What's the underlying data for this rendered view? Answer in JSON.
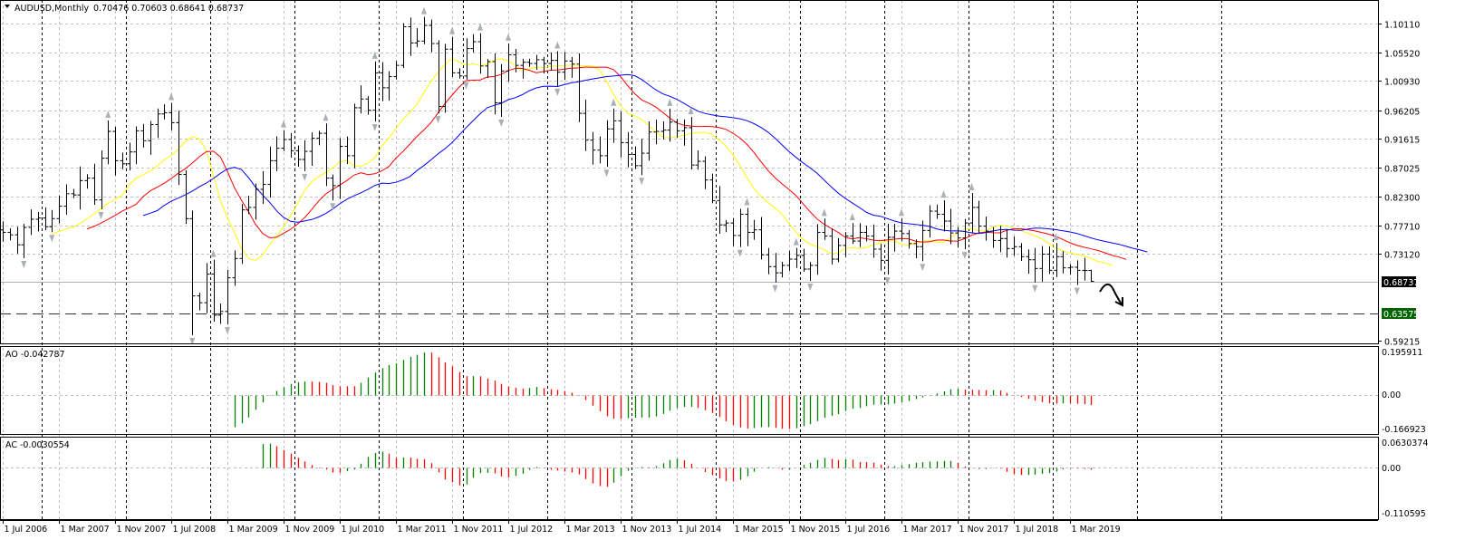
{
  "header": {
    "symbol_label": "AUDUSD,Monthly",
    "ohlc_label": "0.70476 0.70603 0.68641 0.68737"
  },
  "price_axis": {
    "labels": [
      "1.10110",
      "1.05520",
      "1.00930",
      "0.96205",
      "0.91615",
      "0.87025",
      "0.82300",
      "0.77710",
      "0.73120",
      "0.59215"
    ],
    "current_price": "0.68737",
    "level_price": "0.63575",
    "current_bg": "#000000",
    "level_bg": "#006400"
  },
  "ao_panel": {
    "label": "AO -0.042787",
    "top": "0.195911",
    "zero": "0.00",
    "bottom": "-0.166923"
  },
  "ac_panel": {
    "label": "AC -0.0030554",
    "top": "0.0630374",
    "zero": "0.00",
    "bottom": "-0.110595"
  },
  "time_axis": {
    "labels": [
      "1 Jul 2006",
      "1 Mar 2007",
      "1 Nov 2007",
      "1 Jul 2008",
      "1 Mar 2009",
      "1 Nov 2009",
      "1 Jul 2010",
      "1 Mar 2011",
      "1 Nov 2011",
      "1 Jul 2012",
      "1 Mar 2013",
      "1 Nov 2013",
      "1 Jul 2014",
      "1 Mar 2015",
      "1 Nov 2015",
      "1 Jul 2016",
      "1 Mar 2017",
      "1 Nov 2017",
      "1 Jul 2018",
      "1 Mar 2019"
    ]
  },
  "colors": {
    "up": "#008000",
    "down": "#ff0000",
    "ma_fast": "#ffff00",
    "ma_mid": "#ff0000",
    "ma_slow": "#0000ff"
  },
  "chart_data": {
    "type": "ohlc",
    "title": "AUDUSD,Monthly",
    "start": "Jul 2006",
    "interval": "month",
    "ylim": [
      0.59215,
      1.1011
    ],
    "close": [
      0.766,
      0.762,
      0.746,
      0.774,
      0.787,
      0.789,
      0.775,
      0.788,
      0.808,
      0.828,
      0.826,
      0.849,
      0.853,
      0.818,
      0.885,
      0.928,
      0.881,
      0.876,
      0.895,
      0.929,
      0.913,
      0.939,
      0.956,
      0.958,
      0.942,
      0.859,
      0.788,
      0.664,
      0.653,
      0.699,
      0.633,
      0.639,
      0.693,
      0.724,
      0.802,
      0.806,
      0.835,
      0.843,
      0.881,
      0.901,
      0.915,
      0.897,
      0.883,
      0.896,
      0.917,
      0.925,
      0.853,
      0.841,
      0.904,
      0.889,
      0.966,
      0.98,
      0.962,
      1.022,
      0.998,
      1.016,
      1.034,
      1.096,
      1.07,
      1.073,
      1.098,
      1.069,
      0.968,
      1.06,
      1.022,
      1.017,
      1.061,
      1.072,
      1.033,
      1.04,
      0.974,
      1.025,
      1.051,
      1.034,
      1.039,
      1.037,
      1.043,
      1.037,
      1.042,
      1.023,
      1.041,
      1.036,
      0.957,
      0.914,
      0.898,
      0.889,
      0.932,
      0.945,
      0.91,
      0.891,
      0.873,
      0.893,
      0.927,
      0.928,
      0.93,
      0.943,
      0.929,
      0.934,
      0.874,
      0.88,
      0.85,
      0.817,
      0.778,
      0.781,
      0.761,
      0.795,
      0.766,
      0.77,
      0.73,
      0.711,
      0.701,
      0.713,
      0.723,
      0.729,
      0.707,
      0.713,
      0.766,
      0.76,
      0.723,
      0.745,
      0.76,
      0.752,
      0.766,
      0.76,
      0.739,
      0.721,
      0.758,
      0.768,
      0.764,
      0.748,
      0.743,
      0.769,
      0.8,
      0.795,
      0.784,
      0.765,
      0.757,
      0.781,
      0.806,
      0.776,
      0.768,
      0.753,
      0.756,
      0.74,
      0.743,
      0.727,
      0.722,
      0.708,
      0.731,
      0.705,
      0.727,
      0.709,
      0.71,
      0.705,
      0.70476,
      0.68737
    ],
    "last_bar": {
      "open": 0.70476,
      "high": 0.70603,
      "low": 0.68641,
      "close": 0.68737
    },
    "horizontal_levels": [
      0.68737,
      0.63575
    ],
    "moving_averages": [
      {
        "name": "fast",
        "period": 5,
        "shift": 3,
        "color": "#ffff00"
      },
      {
        "name": "mid",
        "period": 8,
        "shift": 5,
        "color": "#ff0000"
      },
      {
        "name": "slow",
        "period": 13,
        "shift": 8,
        "color": "#0000ff"
      }
    ],
    "indicators": [
      "AO",
      "AC"
    ],
    "ao_ylim": [
      -0.166923,
      0.195911
    ],
    "ac_ylim": [
      -0.110595,
      0.0630374
    ]
  }
}
